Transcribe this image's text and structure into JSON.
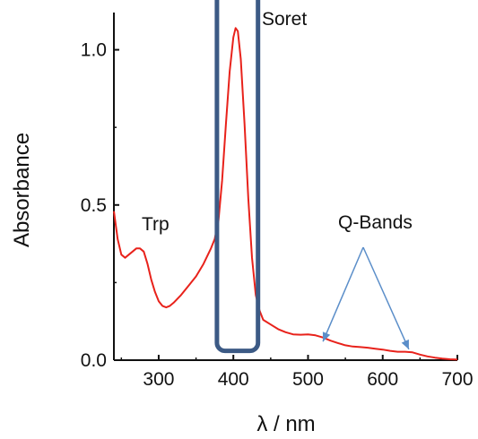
{
  "chart_data": {
    "type": "line",
    "xlabel": "λ / nm",
    "ylabel": "Absorbance",
    "xlim": [
      240,
      700
    ],
    "ylim": [
      0,
      1.12
    ],
    "x_ticks": [
      300,
      400,
      500,
      600,
      700
    ],
    "y_ticks": [
      0.0,
      0.5,
      1.0
    ],
    "x_tick_labels": [
      "300",
      "400",
      "500",
      "600",
      "700"
    ],
    "y_tick_labels": [
      "0.0",
      "0.5",
      "1.0"
    ],
    "grid": false,
    "series": [
      {
        "color": "#e8221b",
        "x": [
          240,
          245,
          250,
          255,
          260,
          265,
          270,
          275,
          280,
          285,
          290,
          295,
          300,
          305,
          310,
          315,
          320,
          330,
          340,
          350,
          360,
          370,
          375,
          380,
          385,
          390,
          395,
          400,
          403,
          406,
          410,
          415,
          420,
          425,
          430,
          435,
          440,
          450,
          460,
          470,
          480,
          490,
          500,
          510,
          520,
          530,
          540,
          550,
          560,
          570,
          580,
          590,
          600,
          610,
          620,
          630,
          640,
          650,
          660,
          670,
          680,
          690,
          700
        ],
        "y": [
          0.48,
          0.39,
          0.34,
          0.33,
          0.34,
          0.35,
          0.36,
          0.36,
          0.35,
          0.31,
          0.26,
          0.22,
          0.19,
          0.175,
          0.17,
          0.175,
          0.185,
          0.21,
          0.24,
          0.27,
          0.31,
          0.36,
          0.39,
          0.45,
          0.58,
          0.76,
          0.93,
          1.04,
          1.07,
          1.06,
          0.97,
          0.76,
          0.52,
          0.33,
          0.21,
          0.16,
          0.13,
          0.115,
          0.1,
          0.09,
          0.083,
          0.082,
          0.083,
          0.08,
          0.073,
          0.063,
          0.055,
          0.048,
          0.044,
          0.042,
          0.04,
          0.037,
          0.034,
          0.03,
          0.027,
          0.027,
          0.025,
          0.018,
          0.012,
          0.008,
          0.005,
          0.003,
          0.002
        ]
      }
    ],
    "annotations": {
      "soret": "Soret",
      "trp": "Trp",
      "q_bands": "Q-Bands"
    },
    "soret_box": {
      "x_range": [
        378,
        433
      ],
      "y_range": [
        0.03,
        1.19
      ],
      "color": "#3c5a85"
    },
    "q_band_arrows": {
      "color": "#5b8ec9",
      "targets": [
        [
          520,
          0.06
        ],
        [
          635,
          0.035
        ]
      ]
    }
  }
}
